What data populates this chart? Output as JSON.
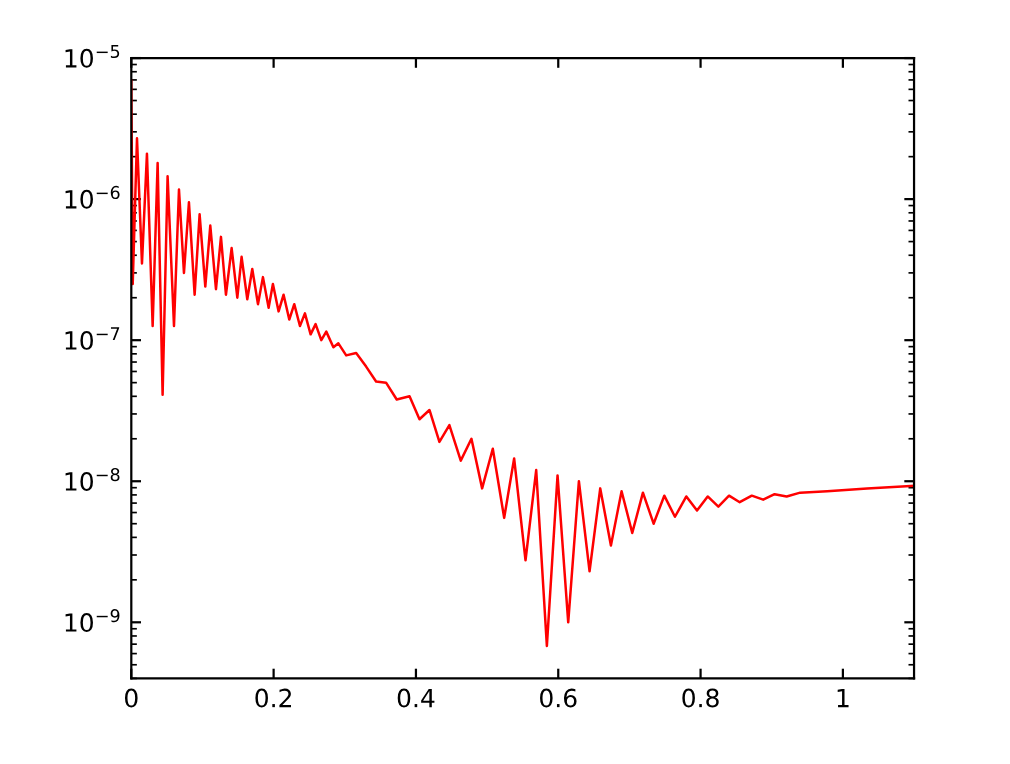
{
  "chart_data": {
    "type": "line",
    "log": "y",
    "grid": false,
    "marker": "none",
    "line_style": "solid",
    "xlim": [
      0,
      1.1
    ],
    "ylim": [
      4e-10,
      1e-05
    ],
    "xticks": [
      0,
      0.2,
      0.4,
      0.6,
      0.8,
      1
    ],
    "yticks": [
      {
        "value": 1e-09,
        "label": "10$^{−9}$"
      },
      {
        "value": 1e-08,
        "label": "10$^{−8}$"
      },
      {
        "value": 1e-07,
        "label": "10$^{−7}$"
      },
      {
        "value": 1e-06,
        "label": "10$^{−6}$"
      },
      {
        "value": 1e-05,
        "label": "10$^{−5}$"
      }
    ],
    "series": [
      {
        "color": "#ff0000",
        "x": [
          0,
          0.002,
          0.008,
          0.015,
          0.022,
          0.03,
          0.037,
          0.044,
          0.051,
          0.06,
          0.067,
          0.074,
          0.081,
          0.089,
          0.096,
          0.104,
          0.111,
          0.119,
          0.126,
          0.133,
          0.141,
          0.149,
          0.155,
          0.163,
          0.17,
          0.178,
          0.185,
          0.193,
          0.199,
          0.207,
          0.214,
          0.222,
          0.229,
          0.237,
          0.244,
          0.252,
          0.259,
          0.267,
          0.274,
          0.284,
          0.291,
          0.302,
          0.316,
          0.33,
          0.344,
          0.358,
          0.373,
          0.391,
          0.405,
          0.419,
          0.433,
          0.447,
          0.463,
          0.478,
          0.493,
          0.508,
          0.524,
          0.538,
          0.554,
          0.569,
          0.584,
          0.599,
          0.614,
          0.629,
          0.644,
          0.659,
          0.674,
          0.689,
          0.704,
          0.719,
          0.734,
          0.749,
          0.764,
          0.78,
          0.795,
          0.81,
          0.825,
          0.84,
          0.855,
          0.872,
          0.888,
          0.904,
          0.921,
          0.94,
          0.978,
          1.034,
          1.1
        ],
        "values": [
          6.9e-06,
          2.5e-07,
          2.7e-06,
          3.5e-07,
          2.1e-06,
          1.26e-07,
          1.8e-06,
          4.1e-08,
          1.45e-06,
          1.26e-07,
          1.17e-06,
          3e-07,
          9.5e-07,
          2.1e-07,
          7.8e-07,
          2.4e-07,
          6.5e-07,
          2.3e-07,
          5.4e-07,
          2.1e-07,
          4.5e-07,
          2e-07,
          3.9e-07,
          1.95e-07,
          3.2e-07,
          1.8e-07,
          2.8e-07,
          1.7e-07,
          2.5e-07,
          1.6e-07,
          2.1e-07,
          1.4e-07,
          1.8e-07,
          1.26e-07,
          1.55e-07,
          1.1e-07,
          1.3e-07,
          1e-07,
          1.15e-07,
          8.9e-08,
          9.5e-08,
          7.8e-08,
          8.1e-08,
          6.5e-08,
          5.1e-08,
          5e-08,
          3.8e-08,
          4e-08,
          2.75e-08,
          3.2e-08,
          1.9e-08,
          2.5e-08,
          1.4e-08,
          2e-08,
          8.9e-09,
          1.7e-08,
          5.5e-09,
          1.45e-08,
          2.75e-09,
          1.2e-08,
          6.8e-10,
          1.1e-08,
          1e-09,
          1e-08,
          2.3e-09,
          8.9e-09,
          3.5e-09,
          8.5e-09,
          4.3e-09,
          8.3e-09,
          5e-09,
          7.9e-09,
          5.6e-09,
          7.8e-09,
          6.2e-09,
          7.8e-09,
          6.6e-09,
          7.9e-09,
          7.1e-09,
          7.9e-09,
          7.4e-09,
          8.1e-09,
          7.8e-09,
          8.3e-09,
          8.5e-09,
          8.9e-09,
          9.3e-09
        ]
      }
    ]
  }
}
